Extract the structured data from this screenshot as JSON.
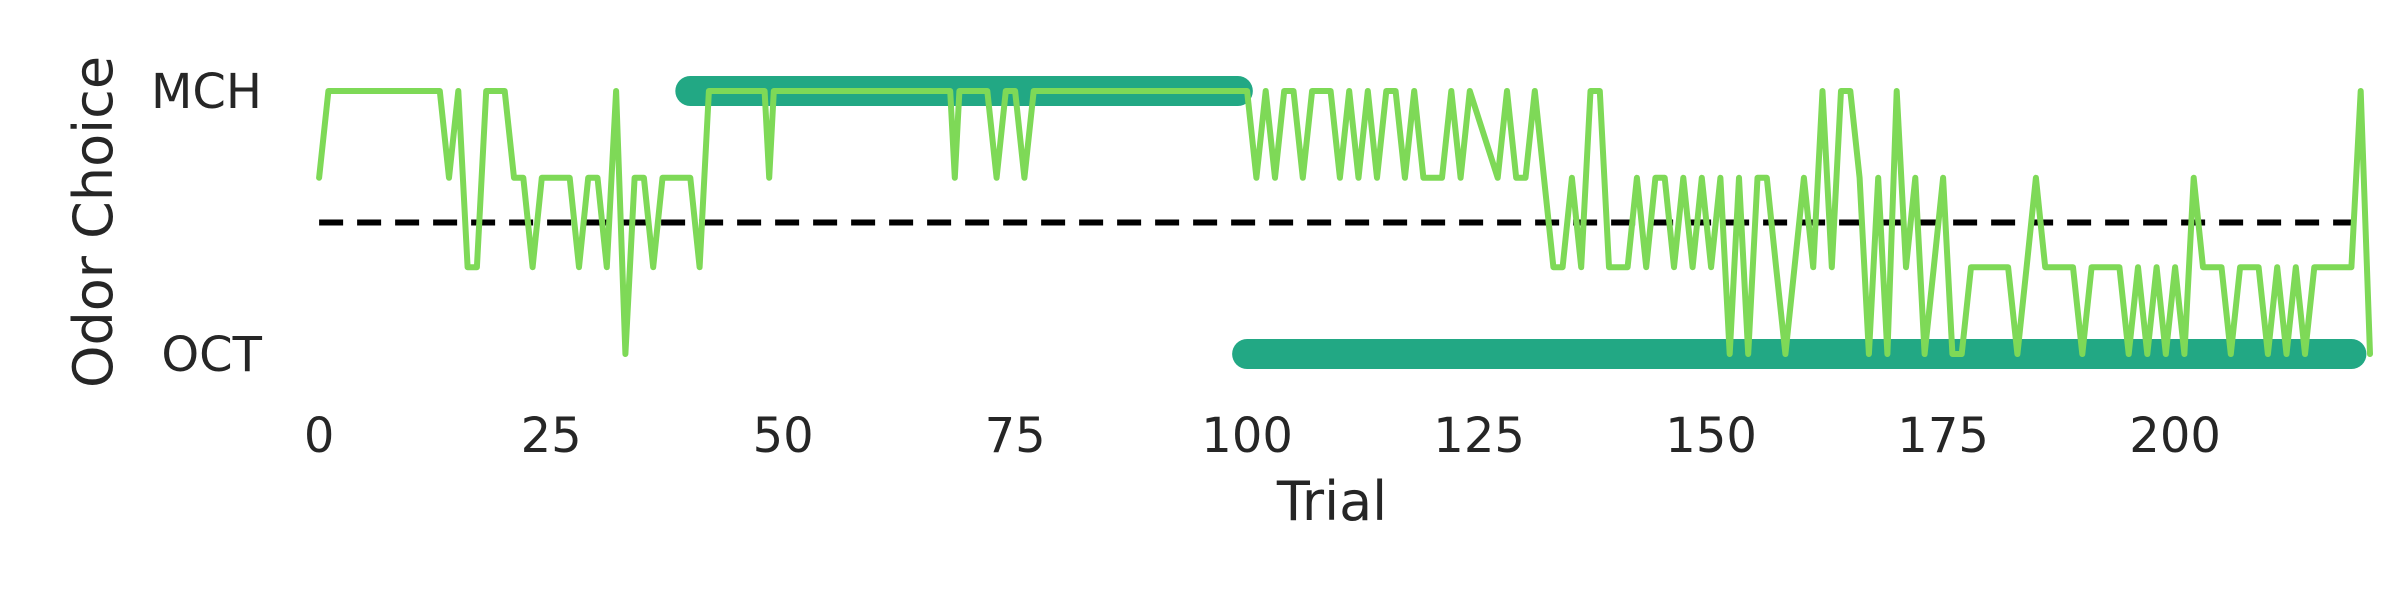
{
  "chart_data": {
    "type": "line",
    "title": "",
    "xlabel": "Trial",
    "ylabel": "Odor Choice",
    "xlim": [
      -4,
      221
    ],
    "ylim": [
      -0.08,
      1.08
    ],
    "x_ticks": [
      0,
      25,
      50,
      75,
      100,
      125,
      150,
      175,
      200
    ],
    "y_ticks": [
      {
        "value": 0,
        "label": "OCT"
      },
      {
        "value": 1,
        "label": "MCH"
      }
    ],
    "grid": false,
    "legend": "none",
    "colors": {
      "choice_line": "#7ed957",
      "reward_marker": "#22a884",
      "reference_line": "#000000"
    },
    "reference_line": {
      "y": 0.5,
      "style": "dashed",
      "x_range": [
        0,
        219
      ]
    },
    "reward_segments": [
      {
        "x_start": 40,
        "x_end": 99,
        "y": 1
      },
      {
        "x_start": 100,
        "x_end": 219,
        "y": 0
      }
    ],
    "series": [
      {
        "values": [
          [
            0,
            0.67
          ],
          [
            1,
            1
          ],
          [
            13,
            1
          ],
          [
            14,
            0.67
          ],
          [
            15,
            1
          ],
          [
            16,
            0.33
          ],
          [
            17,
            0.33
          ],
          [
            18,
            1
          ],
          [
            20,
            1
          ],
          [
            21,
            0.67
          ],
          [
            22,
            0.67
          ],
          [
            23,
            0.33
          ],
          [
            24,
            0.67
          ],
          [
            27,
            0.67
          ],
          [
            28,
            0.33
          ],
          [
            29,
            0.67
          ],
          [
            30,
            0.67
          ],
          [
            31,
            0.33
          ],
          [
            32,
            1
          ],
          [
            33,
            0
          ],
          [
            34,
            0.67
          ],
          [
            35,
            0.67
          ],
          [
            36,
            0.33
          ],
          [
            37,
            0.67
          ],
          [
            40,
            0.67
          ],
          [
            41,
            0.33
          ],
          [
            42,
            1
          ],
          [
            48,
            1
          ],
          [
            48.5,
            0.67
          ],
          [
            49,
            1
          ],
          [
            68,
            1
          ],
          [
            68.5,
            0.67
          ],
          [
            69,
            1
          ],
          [
            72,
            1
          ],
          [
            73,
            0.67
          ],
          [
            74,
            1
          ],
          [
            75,
            1
          ],
          [
            76,
            0.67
          ],
          [
            77,
            1
          ],
          [
            100,
            1
          ],
          [
            101,
            0.67
          ],
          [
            102,
            1
          ],
          [
            103,
            0.67
          ],
          [
            104,
            1
          ],
          [
            105,
            1
          ],
          [
            106,
            0.67
          ],
          [
            107,
            1
          ],
          [
            109,
            1
          ],
          [
            110,
            0.67
          ],
          [
            111,
            1
          ],
          [
            112,
            0.67
          ],
          [
            113,
            1
          ],
          [
            114,
            0.67
          ],
          [
            115,
            1
          ],
          [
            116,
            1
          ],
          [
            117,
            0.67
          ],
          [
            118,
            1
          ],
          [
            119,
            0.67
          ],
          [
            121,
            0.67
          ],
          [
            122,
            1
          ],
          [
            123,
            0.67
          ],
          [
            124,
            1
          ],
          [
            127,
            0.67
          ],
          [
            128,
            1
          ],
          [
            129,
            0.67
          ],
          [
            130,
            0.67
          ],
          [
            131,
            1
          ],
          [
            133,
            0.33
          ],
          [
            134,
            0.33
          ],
          [
            135,
            0.67
          ],
          [
            136,
            0.33
          ],
          [
            137,
            1
          ],
          [
            138,
            1
          ],
          [
            139,
            0.33
          ],
          [
            141,
            0.33
          ],
          [
            142,
            0.67
          ],
          [
            143,
            0.33
          ],
          [
            144,
            0.67
          ],
          [
            145,
            0.67
          ],
          [
            146,
            0.33
          ],
          [
            147,
            0.67
          ],
          [
            148,
            0.33
          ],
          [
            149,
            0.67
          ],
          [
            150,
            0.33
          ],
          [
            151,
            0.67
          ],
          [
            152,
            0
          ],
          [
            153,
            0.67
          ],
          [
            154,
            0
          ],
          [
            155,
            0.67
          ],
          [
            156,
            0.67
          ],
          [
            157,
            0.33
          ],
          [
            158,
            0
          ],
          [
            160,
            0.67
          ],
          [
            161,
            0.33
          ],
          [
            162,
            1
          ],
          [
            163,
            0.33
          ],
          [
            164,
            1
          ],
          [
            165,
            1
          ],
          [
            166,
            0.67
          ],
          [
            167,
            0
          ],
          [
            168,
            0.67
          ],
          [
            169,
            0
          ],
          [
            170,
            1
          ],
          [
            171,
            0.33
          ],
          [
            172,
            0.67
          ],
          [
            173,
            0
          ],
          [
            174,
            0.33
          ],
          [
            175,
            0.67
          ],
          [
            176,
            0
          ],
          [
            177,
            0
          ],
          [
            178,
            0.33
          ],
          [
            182,
            0.33
          ],
          [
            183,
            0
          ],
          [
            184,
            0.33
          ],
          [
            185,
            0.67
          ],
          [
            186,
            0.33
          ],
          [
            189,
            0.33
          ],
          [
            190,
            0
          ],
          [
            191,
            0.33
          ],
          [
            194,
            0.33
          ],
          [
            195,
            0
          ],
          [
            196,
            0.33
          ],
          [
            197,
            0
          ],
          [
            198,
            0.33
          ],
          [
            199,
            0
          ],
          [
            200,
            0.33
          ],
          [
            201,
            0
          ],
          [
            202,
            0.67
          ],
          [
            203,
            0.33
          ],
          [
            205,
            0.33
          ],
          [
            206,
            0
          ],
          [
            207,
            0.33
          ],
          [
            209,
            0.33
          ],
          [
            210,
            0
          ],
          [
            211,
            0.33
          ],
          [
            212,
            0
          ],
          [
            213,
            0.33
          ],
          [
            214,
            0
          ],
          [
            215,
            0.33
          ],
          [
            219,
            0.33
          ],
          [
            220,
            1
          ],
          [
            221,
            0
          ]
        ]
      }
    ]
  }
}
